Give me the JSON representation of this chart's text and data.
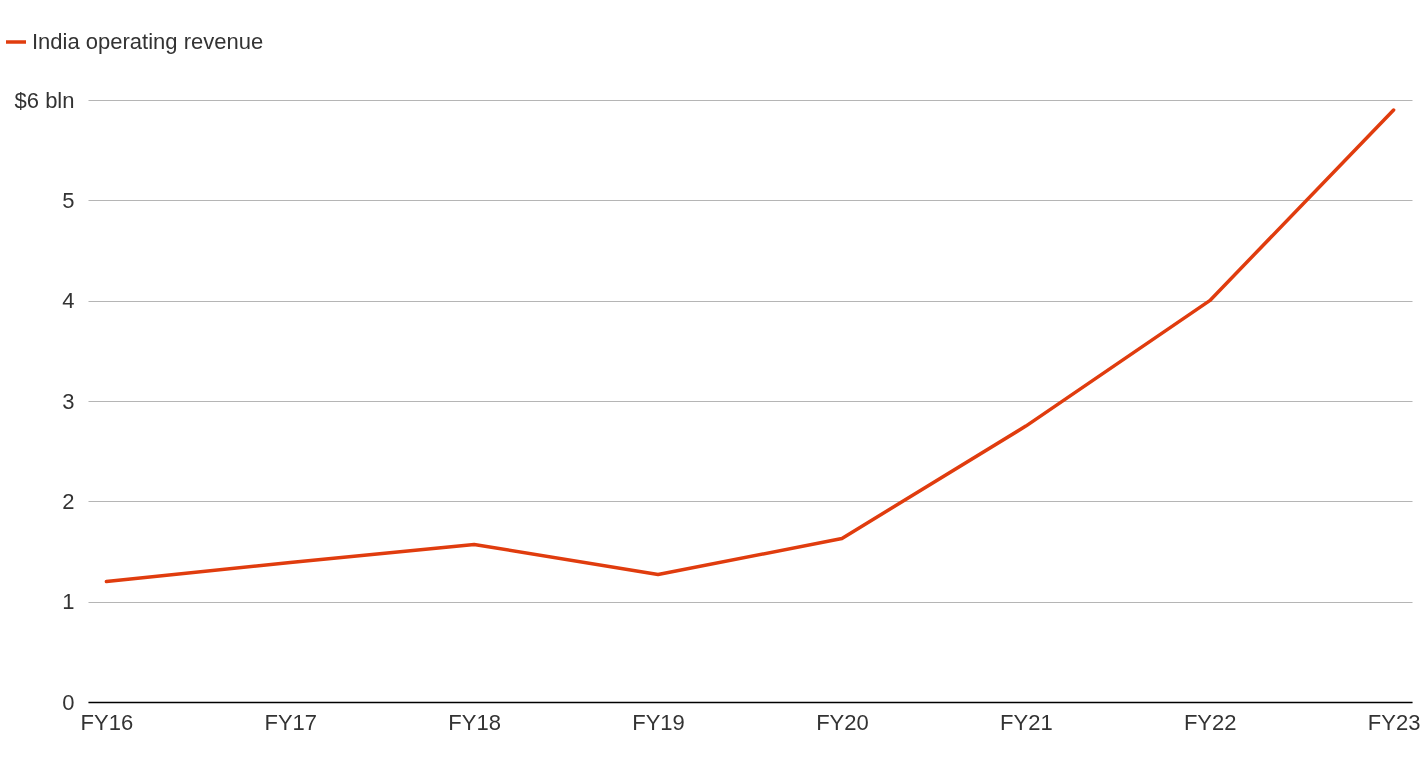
{
  "chart_data": {
    "type": "line",
    "categories": [
      "FY16",
      "FY17",
      "FY18",
      "FY19",
      "FY20",
      "FY21",
      "FY22",
      "FY23"
    ],
    "series": [
      {
        "name": "India operating revenue",
        "color": "#e03c0e",
        "values": [
          1.2,
          1.39,
          1.57,
          1.27,
          1.63,
          2.75,
          4.0,
          5.9
        ]
      }
    ],
    "ylim": [
      0,
      6
    ],
    "yticks": [
      0,
      1,
      2,
      3,
      4,
      5,
      {
        "value": 6,
        "label": "$6 bln"
      }
    ],
    "grid": "y",
    "legend": "top left",
    "marker": "none",
    "line_style": "solid"
  }
}
